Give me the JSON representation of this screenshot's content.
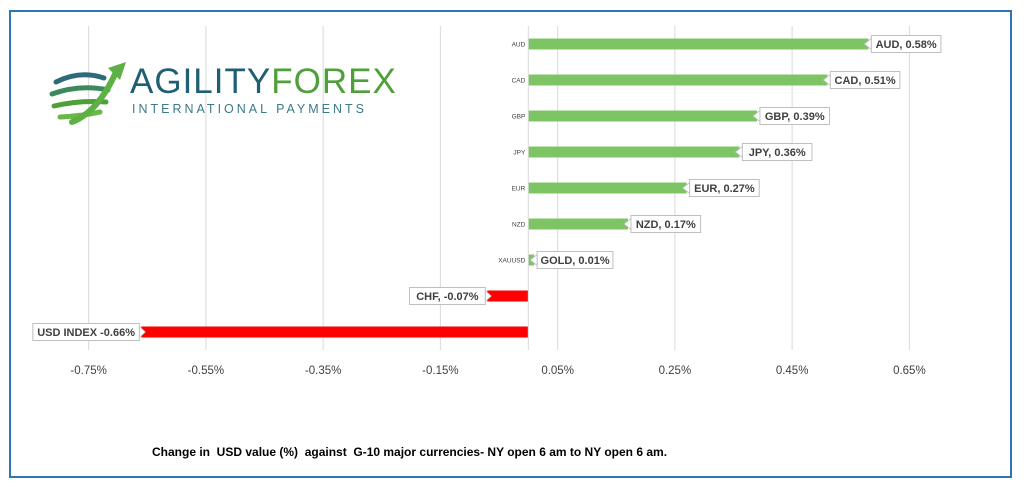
{
  "logo": {
    "word_part1": "AGILITY",
    "word_part2": "FOREX",
    "subtitle": "INTERNATIONAL PAYMENTS"
  },
  "caption": "Change in  USD value (%)  against  G-10 major currencies- NY open 6 am to NY open 6 am.",
  "colors": {
    "positive": "#7cc464",
    "negative": "#ff0000",
    "frame": "#2e75b6"
  },
  "chart_data": {
    "type": "bar",
    "orientation": "horizontal",
    "categories": [
      "AUD",
      "CAD",
      "GBP",
      "JPY",
      "EUR",
      "NZD",
      "XAUUSD",
      "",
      ""
    ],
    "values": [
      0.58,
      0.51,
      0.39,
      0.36,
      0.27,
      0.17,
      0.01,
      -0.07,
      -0.66
    ],
    "data_labels": [
      "AUD, 0.58%",
      "CAD, 0.51%",
      "GBP, 0.39%",
      "JPY, 0.36%",
      "EUR, 0.27%",
      "NZD, 0.17%",
      "GOLD, 0.01%",
      "CHF, -0.07%",
      "USD INDEX -0.66%"
    ],
    "xticks": [
      "-0.75%",
      "-0.55%",
      "-0.35%",
      "-0.15%",
      "0.05%",
      "0.25%",
      "0.45%",
      "0.65%"
    ],
    "xtick_values": [
      -0.75,
      -0.55,
      -0.35,
      -0.15,
      0.05,
      0.25,
      0.45,
      0.65
    ],
    "xlim": [
      -0.85,
      0.75
    ],
    "grid": true,
    "legend": "none"
  }
}
